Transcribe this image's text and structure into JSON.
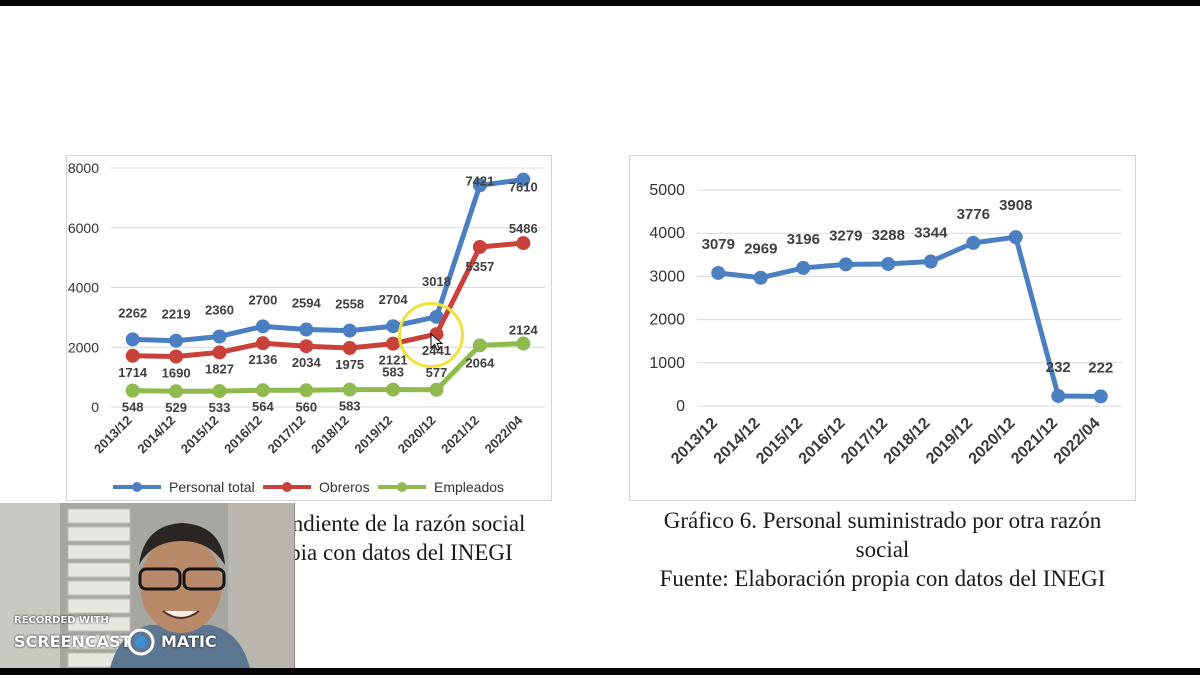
{
  "chart_data": [
    {
      "type": "line",
      "categories": [
        "2013/12",
        "2014/12",
        "2015/12",
        "2016/12",
        "2017/12",
        "2018/12",
        "2019/12",
        "2020/12",
        "2021/12",
        "2022/04"
      ],
      "ylim": [
        0,
        8000
      ],
      "yticks": [
        "0",
        "2000",
        "4000",
        "6000",
        "8000"
      ],
      "legend_position": "bottom",
      "grid": true,
      "series": [
        {
          "name": "Personal total",
          "color": "#4a7fc1",
          "values": [
            2262,
            2219,
            2360,
            2700,
            2594,
            2558,
            2704,
            3018,
            7421,
            7610
          ],
          "labels": [
            "2262",
            "2219",
            "2360",
            "2700",
            "2594",
            "2558",
            "2704",
            "3018",
            "7421",
            "7610"
          ]
        },
        {
          "name": "Obreros",
          "color": "#c9423a",
          "values": [
            1714,
            1690,
            1827,
            2136,
            2034,
            1975,
            2121,
            2441,
            5357,
            5486
          ],
          "labels": [
            "1714",
            "1690",
            "1827",
            "2136",
            "2034",
            "1975",
            "2121",
            "2441",
            "5357",
            "5486"
          ]
        },
        {
          "name": "Empleados",
          "color": "#8fbb4e",
          "values": [
            548,
            529,
            533,
            564,
            560,
            583,
            583,
            577,
            2064,
            2124
          ],
          "labels": [
            "548",
            "529",
            "533",
            "564",
            "560",
            "583",
            "583",
            "577",
            "2064",
            "2124"
          ]
        }
      ]
    },
    {
      "type": "line",
      "categories": [
        "2013/12",
        "2014/12",
        "2015/12",
        "2016/12",
        "2017/12",
        "2018/12",
        "2019/12",
        "2020/12",
        "2021/12",
        "2022/04"
      ],
      "ylim": [
        0,
        5000
      ],
      "yticks": [
        "0",
        "1000",
        "2000",
        "3000",
        "4000",
        "5000"
      ],
      "grid": true,
      "series": [
        {
          "color": "#4a7fc1",
          "values": [
            3079,
            2969,
            3196,
            3279,
            3288,
            3344,
            3776,
            3908,
            232,
            222
          ],
          "labels": [
            "3079",
            "2969",
            "3196",
            "3279",
            "3288",
            "3344",
            "3776",
            "3908",
            "232",
            "222"
          ]
        }
      ]
    }
  ],
  "captions": {
    "left_line1": "pendiente de la razón social",
    "left_line2": "ropia con datos del INEGI",
    "right_line1": "Gráfico 6. Personal suministrado por otra razón",
    "right_line2": "social",
    "right_line3": "Fuente: Elaboración propia con datos del INEGI"
  },
  "watermark": {
    "line1": "RECORDED WITH",
    "line2a": "SCREENCAST",
    "line2b": "MATIC"
  }
}
